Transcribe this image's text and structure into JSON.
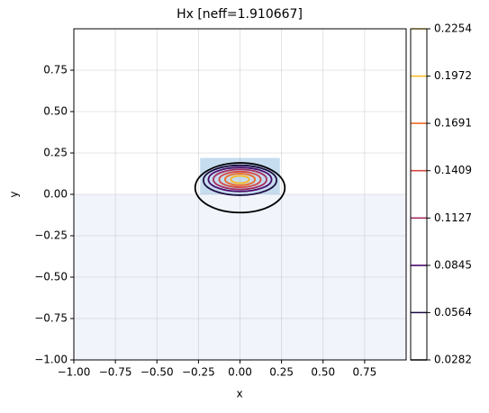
{
  "chart_data": {
    "type": "contour",
    "title": "Hx [neff=1.910667]",
    "x_label": "x",
    "y_label": "y",
    "xlim": [
      -1,
      1
    ],
    "ylim": [
      -1,
      1
    ],
    "grid": true,
    "xticks": [
      {
        "value": -1,
        "label": "−1.00"
      },
      {
        "value": -0.75,
        "label": "−0.75"
      },
      {
        "value": -0.5,
        "label": "−0.50"
      },
      {
        "value": -0.25,
        "label": "−0.25"
      },
      {
        "value": 0,
        "label": "0.00"
      },
      {
        "value": 0.25,
        "label": "0.25"
      },
      {
        "value": 0.5,
        "label": "0.50"
      },
      {
        "value": 0.75,
        "label": "0.75"
      }
    ],
    "yticks": [
      {
        "value": -1,
        "label": "−1.00"
      },
      {
        "value": -0.75,
        "label": "−0.75"
      },
      {
        "value": -0.5,
        "label": "−0.50"
      },
      {
        "value": -0.25,
        "label": "−0.25"
      },
      {
        "value": 0,
        "label": "0.00"
      },
      {
        "value": 0.25,
        "label": "0.25"
      },
      {
        "value": 0.5,
        "label": "0.50"
      },
      {
        "value": 0.75,
        "label": "0.75"
      }
    ],
    "regions": [
      {
        "x": [
          -1,
          1
        ],
        "y": [
          -1,
          0
        ],
        "color": "#f1f5fb"
      },
      {
        "x": [
          -0.24,
          0.24
        ],
        "y": [
          0,
          0.22
        ],
        "color": "#c6dcef"
      }
    ],
    "levels": [
      0.0282,
      0.0564,
      0.0845,
      0.1127,
      0.1409,
      0.1691,
      0.1972,
      0.2254
    ],
    "level_colors": [
      "#000004",
      "#1b0c41",
      "#4a0c6b",
      "#a52c60",
      "#d44842",
      "#ed6925",
      "#fbb61a",
      "#f6d746"
    ],
    "contours": [
      {
        "cy": 0.04,
        "rx": 0.27,
        "ry": 0.15
      },
      {
        "cy": 0.085,
        "rx": 0.22,
        "ry": 0.09
      },
      {
        "cy": 0.09,
        "rx": 0.19,
        "ry": 0.072
      },
      {
        "cy": 0.09,
        "rx": 0.16,
        "ry": 0.06
      },
      {
        "cy": 0.09,
        "rx": 0.125,
        "ry": 0.047
      },
      {
        "cy": 0.09,
        "rx": 0.09,
        "ry": 0.035
      },
      {
        "cy": 0.09,
        "rx": 0.055,
        "ry": 0.022
      }
    ]
  }
}
